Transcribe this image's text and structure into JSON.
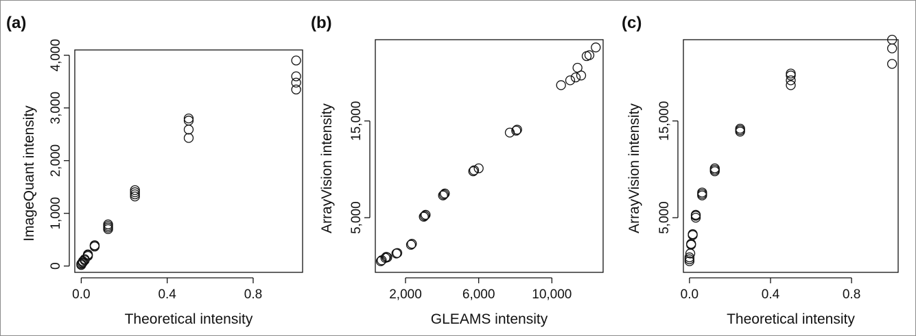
{
  "chart_data": [
    {
      "type": "scatter",
      "panel_label": "(a)",
      "title": "",
      "xlabel": "Theoretical intensity",
      "ylabel": "ImageQuant intensity",
      "xlim": [
        -0.03,
        1.03
      ],
      "ylim": [
        -120,
        4100
      ],
      "xticks": [
        0.0,
        0.4,
        0.8
      ],
      "xtick_labels": [
        "0.0",
        "0.4",
        "0.8"
      ],
      "yticks": [
        0,
        1000,
        2000,
        3000,
        4000
      ],
      "ytick_labels": [
        "0",
        "1,000",
        "2,000",
        "3,000",
        "4,000"
      ],
      "grid": false,
      "series": [
        {
          "x": [
            0.0,
            0.0,
            0.004,
            0.008,
            0.008,
            0.016,
            0.016,
            0.031,
            0.031,
            0.031,
            0.0625,
            0.0625,
            0.0625,
            0.125,
            0.125,
            0.125,
            0.125,
            0.25,
            0.25,
            0.25,
            0.25,
            0.5,
            0.5,
            0.5,
            0.5,
            1.0,
            1.0,
            1.0,
            1.0
          ],
          "y": [
            20,
            40,
            55,
            70,
            90,
            110,
            130,
            190,
            210,
            220,
            370,
            390,
            395,
            700,
            730,
            760,
            790,
            1320,
            1360,
            1400,
            1440,
            2430,
            2590,
            2760,
            2800,
            3350,
            3480,
            3600,
            3900
          ]
        }
      ]
    },
    {
      "type": "scatter",
      "panel_label": "(b)",
      "title": "",
      "xlabel": "GLEAMS intensity",
      "ylabel": "ArrayVision intensity",
      "xlim": [
        350,
        12800
      ],
      "ylim": [
        -650,
        23400
      ],
      "xticks": [
        2000,
        6000,
        10000
      ],
      "xtick_labels": [
        "2,000",
        "6,000",
        "10,000"
      ],
      "yticks": [
        5000,
        15000
      ],
      "ytick_labels": [
        "5,000",
        "15,000"
      ],
      "grid": false,
      "series": [
        {
          "x": [
            650,
            700,
            900,
            950,
            1000,
            1500,
            1550,
            2300,
            2350,
            3000,
            3050,
            3100,
            4050,
            4100,
            4150,
            5700,
            5750,
            6000,
            7700,
            8050,
            8100,
            10500,
            11000,
            11300,
            11600,
            11400,
            11900,
            12050,
            12400
          ],
          "y": [
            500,
            600,
            850,
            950,
            900,
            1300,
            1350,
            2200,
            2300,
            5100,
            5200,
            5300,
            7300,
            7400,
            7500,
            9800,
            9900,
            10100,
            13800,
            14000,
            14100,
            18700,
            19200,
            19500,
            19700,
            20500,
            21700,
            21800,
            22600
          ]
        }
      ]
    },
    {
      "type": "scatter",
      "panel_label": "(c)",
      "title": "",
      "xlabel": "Theoretical intensity",
      "ylabel": "ArrayVision intensity",
      "xlim": [
        -0.03,
        1.03
      ],
      "ylim": [
        -650,
        23400
      ],
      "xticks": [
        0.0,
        0.4,
        0.8
      ],
      "xtick_labels": [
        "0.0",
        "0.4",
        "0.8"
      ],
      "yticks": [
        5000,
        15000
      ],
      "ytick_labels": [
        "5,000",
        "15,000"
      ],
      "grid": false,
      "series": [
        {
          "x": [
            0.0,
            0.0,
            0.0,
            0.004,
            0.008,
            0.008,
            0.016,
            0.016,
            0.031,
            0.031,
            0.031,
            0.0625,
            0.0625,
            0.0625,
            0.125,
            0.125,
            0.125,
            0.25,
            0.25,
            0.25,
            0.5,
            0.5,
            0.5,
            0.5,
            1.0,
            1.0,
            1.0
          ],
          "y": [
            500,
            700,
            900,
            1300,
            2200,
            2300,
            3200,
            3300,
            5000,
            5200,
            5300,
            7300,
            7450,
            7600,
            9800,
            9950,
            10100,
            13900,
            14050,
            14200,
            18700,
            19200,
            19700,
            19900,
            20900,
            22500,
            23400
          ]
        }
      ]
    }
  ]
}
